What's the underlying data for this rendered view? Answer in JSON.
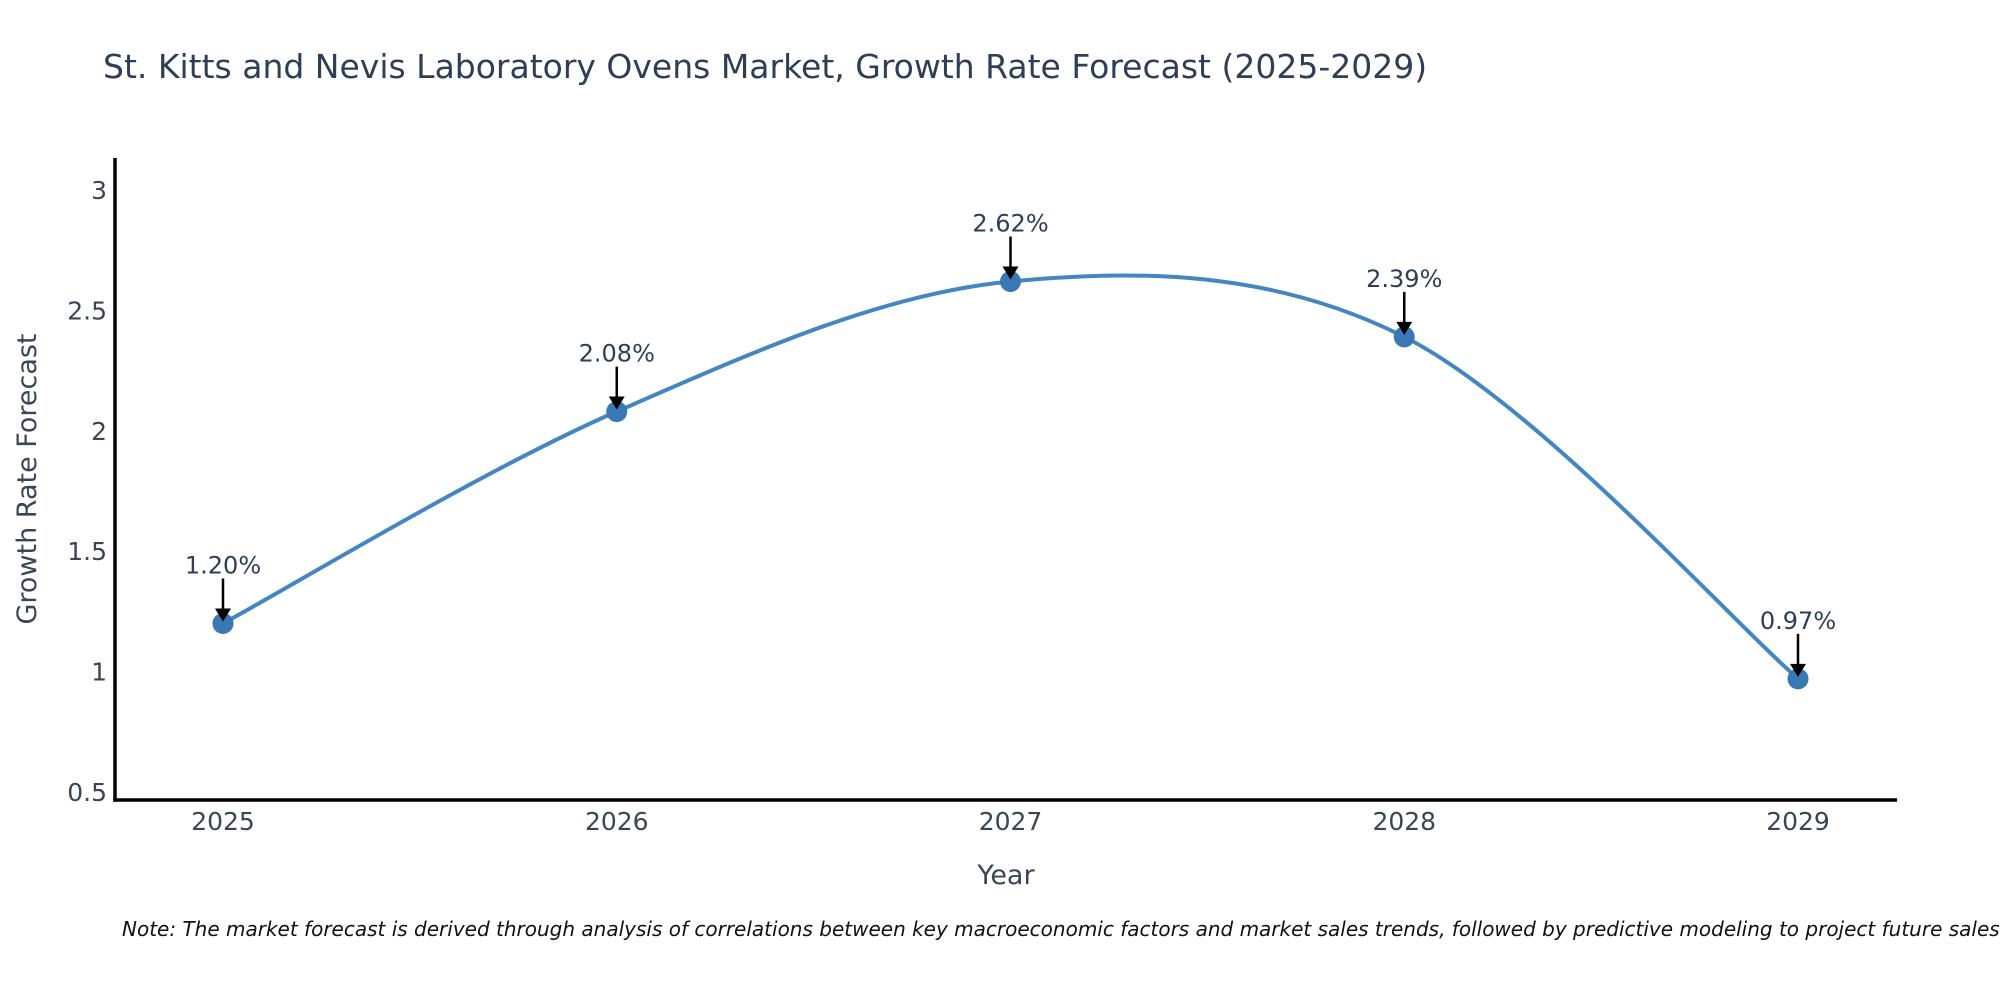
{
  "note": "Note: The market forecast is derived through analysis of correlations between key macroeconomic factors and market sales trends, followed by predictive modeling to project future sales",
  "chart_data": {
    "type": "line",
    "line_shape": "spline",
    "title": "St. Kitts and Nevis Laboratory Ovens Market, Growth Rate Forecast (2025-2029)",
    "xlabel": "Year",
    "ylabel": "Growth Rate Forecast",
    "categories": [
      "2025",
      "2026",
      "2027",
      "2028",
      "2029"
    ],
    "x": [
      2025,
      2026,
      2027,
      2028,
      2029
    ],
    "series": [
      {
        "name": "Growth Rate Forecast",
        "values": [
          1.2,
          2.08,
          2.62,
          2.39,
          0.97
        ]
      }
    ],
    "point_labels": [
      "1.20%",
      "2.08%",
      "2.62%",
      "2.39%",
      "0.97%"
    ],
    "ytick_values": [
      0.5,
      1,
      1.5,
      2,
      2.5,
      3
    ],
    "ytick_labels": [
      "0.5",
      "1",
      "1.5",
      "2",
      "2.5",
      "3"
    ],
    "ylim": [
      0.47,
      3.13
    ],
    "grid": false,
    "legend": "none",
    "annotation_style": "value-above-with-down-arrow",
    "colors": {
      "line": "#4486c1",
      "marker": "#3878b4",
      "arrow": "#000000",
      "axis": "#000000",
      "label_text": "#2e3e56",
      "tick_text": "#3b4554",
      "note_text": "#111111",
      "background": "#ffffff"
    }
  }
}
